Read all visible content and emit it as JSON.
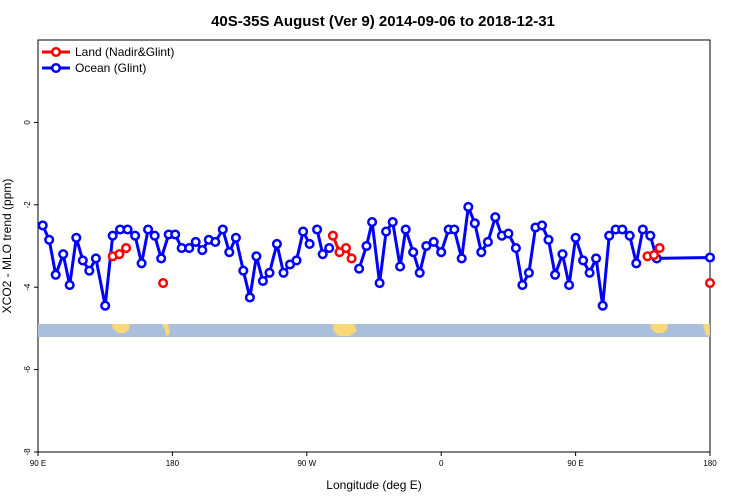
{
  "chart_data": {
    "type": "line",
    "title": "40S-35S August (Ver 9)   2014-09-06 to 2018-12-31",
    "xlabel": "Longitude (deg E)",
    "ylabel": "XCO2 - MLO trend (ppm)",
    "xlim": [
      90,
      450
    ],
    "ylim": [
      -8,
      2
    ],
    "x_ticks": [
      {
        "value": 90,
        "label": "90 E"
      },
      {
        "value": 162,
        "label": "180"
      },
      {
        "value": 234,
        "label": "90 W"
      },
      {
        "value": 306,
        "label": "0"
      },
      {
        "value": 378,
        "label": "90 E"
      },
      {
        "value": 450,
        "label": "180"
      }
    ],
    "y_ticks": [
      {
        "value": -8,
        "label": "-8"
      },
      {
        "value": -6,
        "label": "-6"
      },
      {
        "value": -4,
        "label": "-4"
      },
      {
        "value": -2,
        "label": "-2"
      },
      {
        "value": 0,
        "label": "0"
      }
    ],
    "legend_position": "top-left",
    "series": [
      {
        "name": "Land (Nadir&Glint)",
        "color": "#ff0000",
        "points": [
          [
            130,
            -3.25
          ],
          [
            133.6,
            -3.2
          ],
          [
            137.2,
            -3.05
          ],
          [
            157,
            -3.9
          ],
          [
            248,
            -2.75
          ],
          [
            251.5,
            -3.15
          ],
          [
            255,
            -3.05
          ],
          [
            258,
            -3.3
          ],
          [
            416.5,
            -3.25
          ],
          [
            420,
            -3.22
          ],
          [
            423,
            -3.05
          ],
          [
            450,
            -3.9
          ]
        ]
      },
      {
        "name": "Ocean (Glint)",
        "color": "#0000ff",
        "points": [
          [
            92.5,
            -2.5
          ],
          [
            96,
            -2.85
          ],
          [
            99.5,
            -3.7
          ],
          [
            103.5,
            -3.2
          ],
          [
            107,
            -3.95
          ],
          [
            110.5,
            -2.8
          ],
          [
            114,
            -3.35
          ],
          [
            117.5,
            -3.6
          ],
          [
            121,
            -3.3
          ],
          [
            126,
            -4.45
          ],
          [
            130,
            -2.75
          ],
          [
            134,
            -2.6
          ],
          [
            138,
            -2.6
          ],
          [
            142,
            -2.75
          ],
          [
            145.5,
            -3.42
          ],
          [
            149,
            -2.6
          ],
          [
            152.5,
            -2.75
          ],
          [
            156,
            -3.3
          ],
          [
            160,
            -2.72
          ],
          [
            163.5,
            -2.72
          ],
          [
            167,
            -3.05
          ],
          [
            171,
            -3.05
          ],
          [
            174.5,
            -2.9
          ],
          [
            178,
            -3.1
          ],
          [
            181.5,
            -2.85
          ],
          [
            185,
            -2.9
          ],
          [
            189,
            -2.6
          ],
          [
            192.5,
            -3.15
          ],
          [
            196,
            -2.8
          ],
          [
            200,
            -3.6
          ],
          [
            203.5,
            -4.25
          ],
          [
            207,
            -3.25
          ],
          [
            210.5,
            -3.85
          ],
          [
            214,
            -3.65
          ],
          [
            218,
            -2.95
          ],
          [
            221.5,
            -3.65
          ],
          [
            225,
            -3.45
          ],
          [
            228.5,
            -3.35
          ],
          [
            232,
            -2.65
          ],
          [
            235.5,
            -2.95
          ],
          {
            "gap": true
          },
          [
            239.5,
            -2.6
          ],
          [
            242.5,
            -3.2
          ],
          [
            246,
            -3.05
          ],
          {
            "gap": true
          },
          [
            262,
            -3.55
          ],
          [
            266,
            -3.0
          ],
          [
            269,
            -2.42
          ],
          [
            273,
            -3.9
          ],
          [
            276.5,
            -2.65
          ],
          [
            280,
            -2.42
          ],
          [
            284,
            -3.5
          ],
          [
            287,
            -2.6
          ],
          [
            291,
            -3.15
          ],
          [
            294.5,
            -3.65
          ],
          [
            298,
            -3.0
          ],
          [
            302,
            -2.9
          ],
          [
            306,
            -3.15
          ],
          [
            310,
            -2.6
          ],
          [
            313,
            -2.6
          ],
          [
            317,
            -3.3
          ],
          [
            320.5,
            -2.05
          ],
          [
            324,
            -2.45
          ],
          [
            327.5,
            -3.15
          ],
          [
            331,
            -2.9
          ],
          [
            335,
            -2.3
          ],
          [
            338.5,
            -2.75
          ],
          [
            342,
            -2.7
          ],
          [
            346,
            -3.05
          ],
          [
            349.5,
            -3.95
          ],
          [
            353,
            -3.65
          ],
          [
            356.5,
            -2.55
          ],
          [
            360,
            -2.5
          ],
          [
            363.5,
            -2.85
          ],
          [
            367,
            -3.7
          ],
          [
            371,
            -3.2
          ],
          [
            374.5,
            -3.95
          ],
          [
            378,
            -2.8
          ],
          [
            382,
            -3.35
          ],
          [
            385.5,
            -3.65
          ],
          [
            389,
            -3.3
          ],
          [
            392.5,
            -4.45
          ],
          [
            396,
            -2.75
          ],
          [
            399.5,
            -2.6
          ],
          [
            403,
            -2.6
          ],
          [
            407,
            -2.75
          ],
          [
            410.5,
            -3.42
          ],
          [
            414,
            -2.6
          ],
          [
            418,
            -2.75
          ],
          [
            421.5,
            -3.3
          ],
          [
            450,
            -3.28
          ]
        ]
      }
    ]
  }
}
